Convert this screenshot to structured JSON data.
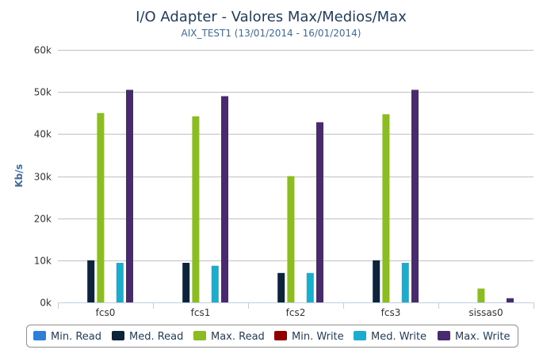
{
  "chart_data": {
    "type": "bar",
    "title": "I/O Adapter - Valores Max/Medios/Max",
    "subtitle": "AIX_TEST1 (13/01/2014 - 16/01/2014)",
    "xlabel": "",
    "ylabel": "Kb/s",
    "ylim": [
      0,
      60000
    ],
    "yticks": [
      0,
      10000,
      20000,
      30000,
      40000,
      50000,
      60000
    ],
    "ytick_labels": [
      "0k",
      "10k",
      "20k",
      "30k",
      "40k",
      "50k",
      "60k"
    ],
    "categories": [
      "fcs0",
      "fcs1",
      "fcs2",
      "fcs3",
      "sissas0"
    ],
    "grid": true,
    "legend_position": "bottom",
    "series": [
      {
        "name": "Min. Read",
        "color": "#2f7ed8",
        "values": [
          0,
          0,
          0,
          0,
          0
        ]
      },
      {
        "name": "Med. Read",
        "color": "#0d233a",
        "values": [
          10000,
          9400,
          7000,
          10000,
          0
        ]
      },
      {
        "name": "Max. Read",
        "color": "#8bbc21",
        "values": [
          45000,
          44200,
          30000,
          44700,
          3300
        ]
      },
      {
        "name": "Min. Write",
        "color": "#910000",
        "values": [
          0,
          0,
          0,
          0,
          0
        ]
      },
      {
        "name": "Med. Write",
        "color": "#1aadce",
        "values": [
          9400,
          8700,
          7000,
          9400,
          0
        ]
      },
      {
        "name": "Max. Write",
        "color": "#492970",
        "values": [
          50500,
          49000,
          42800,
          50500,
          1000
        ]
      }
    ]
  }
}
